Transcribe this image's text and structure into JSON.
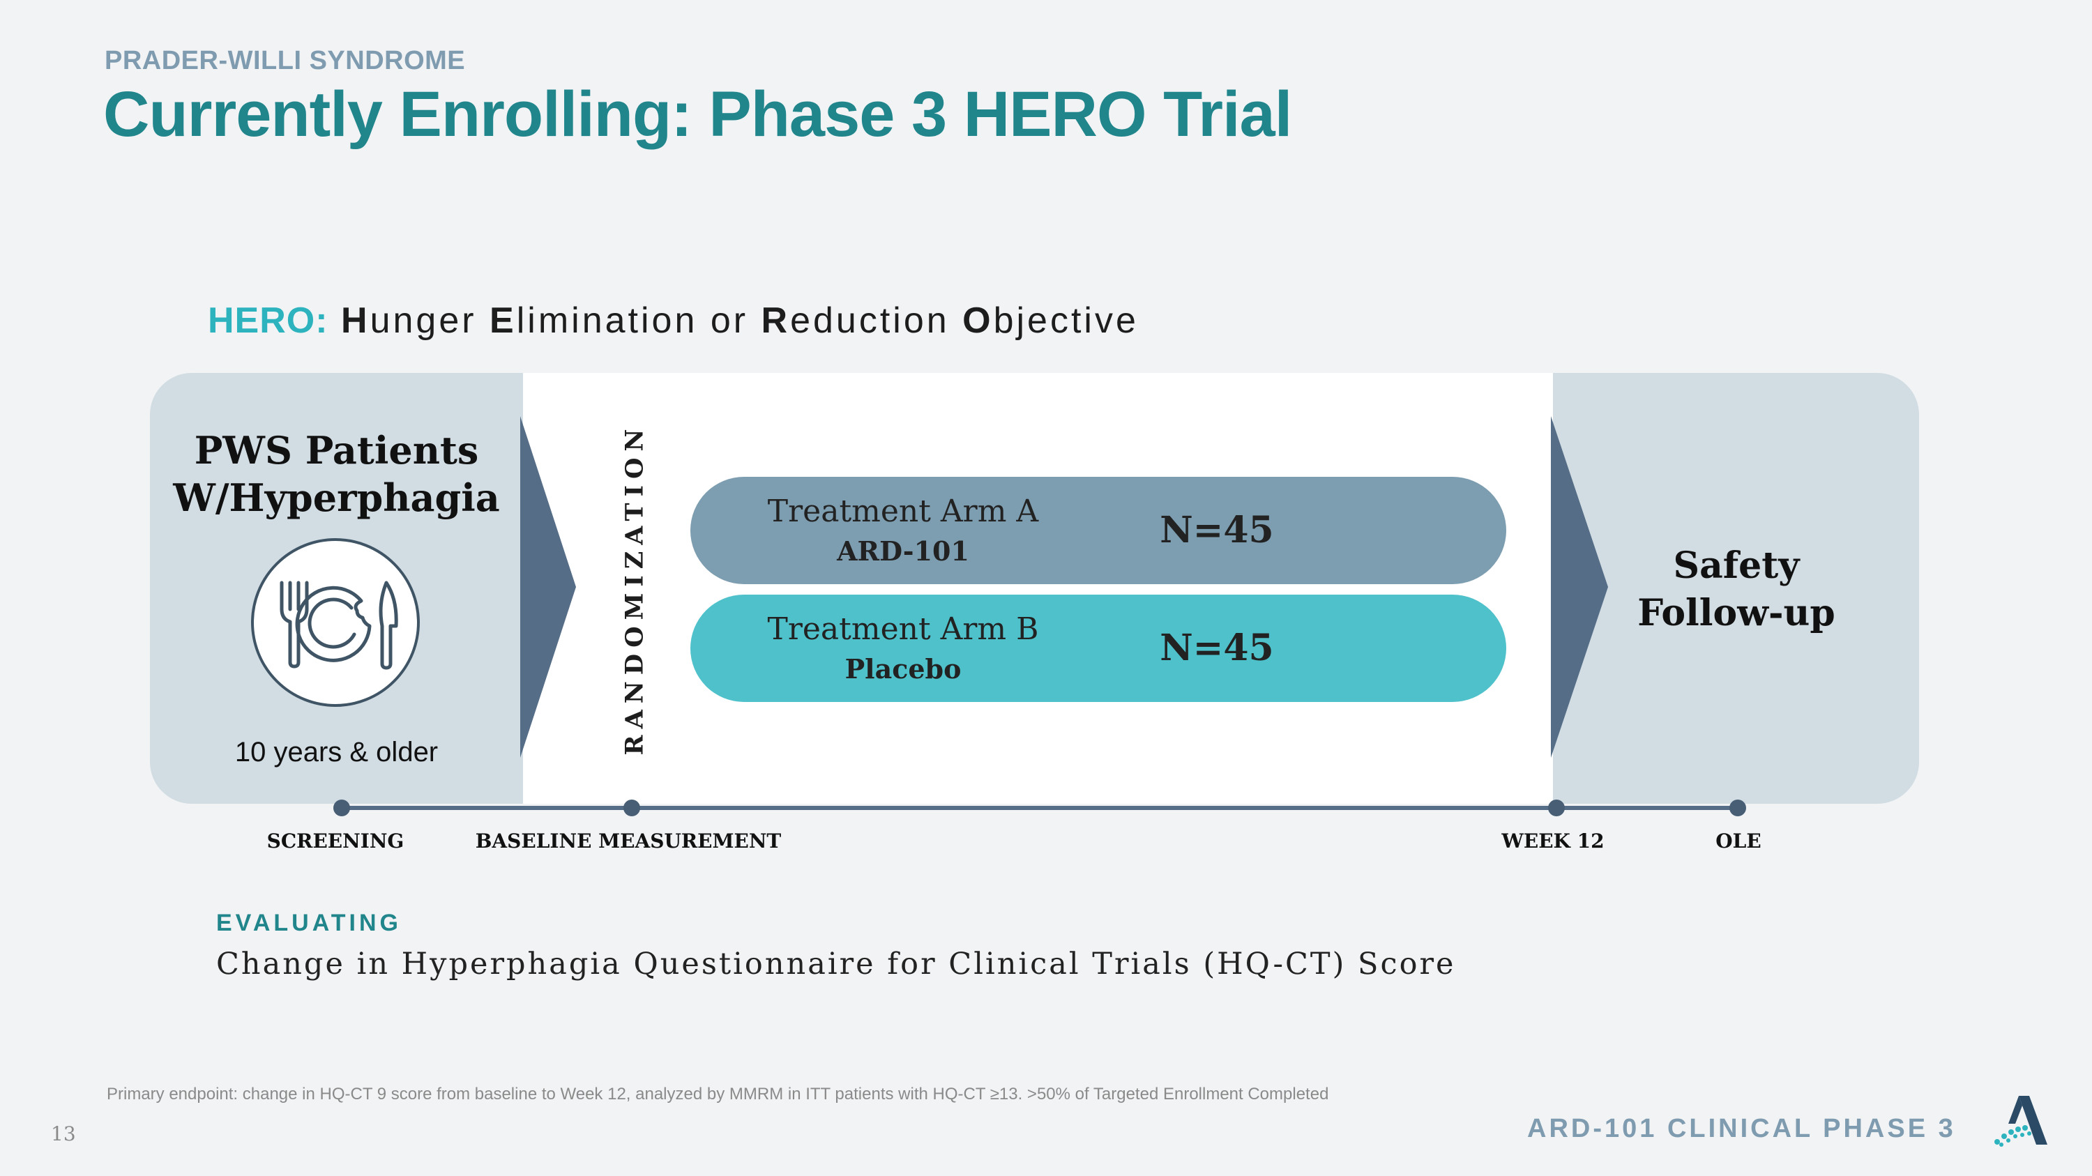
{
  "header": {
    "eyebrow": "PRADER-WILLI SYNDROME",
    "title": "Currently Enrolling: Phase 3 HERO Trial"
  },
  "hero": {
    "tag": "HERO:",
    "words": [
      {
        "initial": "H",
        "rest": "unger "
      },
      {
        "initial": "E",
        "rest": "limination or "
      },
      {
        "initial": "R",
        "rest": "eduction "
      },
      {
        "initial": "O",
        "rest": "bjective"
      }
    ]
  },
  "diagram": {
    "population": {
      "title_line1": "PWS Patients",
      "title_line2": "W/Hyperphagia",
      "icon": "plate-fork-knife-icon",
      "age": "10 years & older"
    },
    "randomization": "RANDOMIZATION",
    "arms": [
      {
        "name": "Treatment Arm A",
        "drug": "ARD-101",
        "n": "N=45",
        "color": "#7d9db0"
      },
      {
        "name": "Treatment Arm B",
        "drug": "Placebo",
        "n": "N=45",
        "color": "#4fc1cb"
      }
    ],
    "followup": {
      "line1": "Safety",
      "line2": "Follow-up"
    },
    "timeline": [
      "SCREENING",
      "BASELINE MEASUREMENT",
      "WEEK 12",
      "OLE"
    ]
  },
  "evaluating": {
    "heading": "EVALUATING",
    "text": "Change in Hyperphagia Questionnaire for Clinical Trials (HQ-CT) Score"
  },
  "footer": {
    "footnote": "Primary endpoint: change in HQ-CT 9 score from baseline to Week 12, analyzed by MMRM in ITT patients with HQ-CT ≥13. >50% of Targeted Enrollment Completed",
    "page_number": "13",
    "right_label": "ARD-101 CLINICAL PHASE 3",
    "logo_icon": "company-logo-icon"
  },
  "colors": {
    "teal": "#21868c",
    "accent": "#2db3be",
    "slate": "#556d86",
    "panel": "#d2dce3"
  }
}
